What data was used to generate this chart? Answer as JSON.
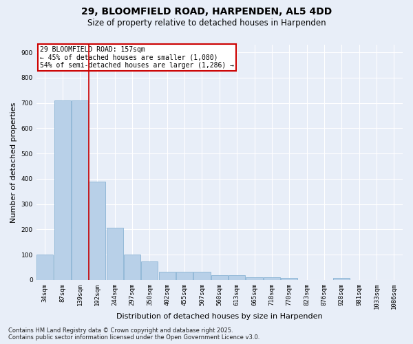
{
  "title": "29, BLOOMFIELD ROAD, HARPENDEN, AL5 4DD",
  "subtitle": "Size of property relative to detached houses in Harpenden",
  "xlabel": "Distribution of detached houses by size in Harpenden",
  "ylabel": "Number of detached properties",
  "categories": [
    "34sqm",
    "87sqm",
    "139sqm",
    "192sqm",
    "244sqm",
    "297sqm",
    "350sqm",
    "402sqm",
    "455sqm",
    "507sqm",
    "560sqm",
    "613sqm",
    "665sqm",
    "718sqm",
    "770sqm",
    "823sqm",
    "876sqm",
    "928sqm",
    "981sqm",
    "1033sqm",
    "1086sqm"
  ],
  "values": [
    100,
    710,
    710,
    390,
    207,
    100,
    73,
    33,
    33,
    33,
    20,
    20,
    10,
    10,
    8,
    0,
    0,
    8,
    0,
    0,
    0
  ],
  "bar_color": "#b8d0e8",
  "bar_edge_color": "#8ab4d4",
  "ylim": [
    0,
    930
  ],
  "yticks": [
    0,
    100,
    200,
    300,
    400,
    500,
    600,
    700,
    800,
    900
  ],
  "red_line_x": 2.5,
  "annotation_line1": "29 BLOOMFIELD ROAD: 157sqm",
  "annotation_line2": "← 45% of detached houses are smaller (1,080)",
  "annotation_line3": "54% of semi-detached houses are larger (1,286) →",
  "annotation_box_color": "#ffffff",
  "annotation_box_edgecolor": "#cc0000",
  "footer_line1": "Contains HM Land Registry data © Crown copyright and database right 2025.",
  "footer_line2": "Contains public sector information licensed under the Open Government Licence v3.0.",
  "background_color": "#e8eef8",
  "grid_color": "#ffffff",
  "title_fontsize": 10,
  "subtitle_fontsize": 8.5,
  "tick_fontsize": 6.5,
  "ylabel_fontsize": 8,
  "xlabel_fontsize": 8,
  "footer_fontsize": 6
}
